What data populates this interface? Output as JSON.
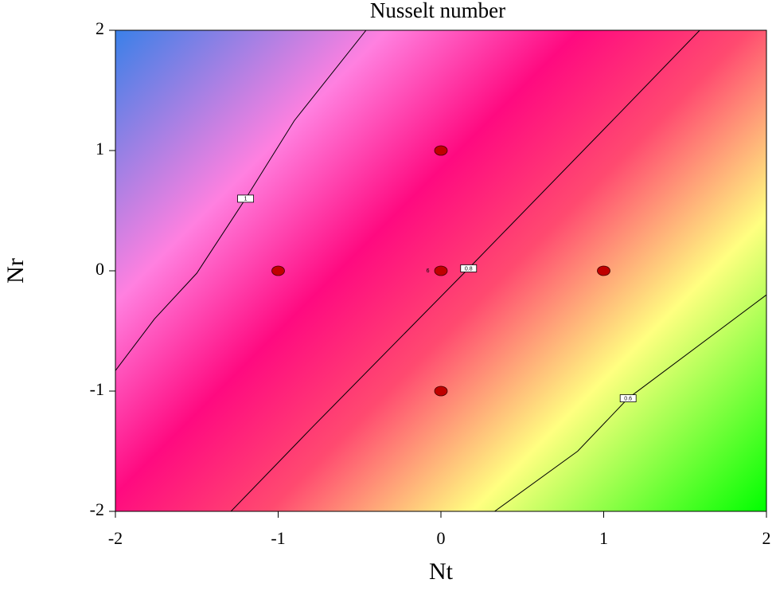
{
  "chart_data": {
    "type": "contour",
    "title": "Nusselt number",
    "xlabel": "Nt",
    "ylabel": "Nr",
    "xlim": [
      -2,
      2
    ],
    "ylim": [
      -2,
      2
    ],
    "xticks": [
      -2,
      -1,
      0,
      1,
      2
    ],
    "yticks": [
      -2,
      -1,
      0,
      1,
      2
    ],
    "contours": [
      {
        "level": 1,
        "points": [
          [
            -2,
            -0.83
          ],
          [
            -1.76,
            -0.4
          ],
          [
            -1.5,
            -0.02
          ],
          [
            -1.2,
            0.6
          ],
          [
            -0.9,
            1.25
          ],
          [
            -0.46,
            2
          ]
        ]
      },
      {
        "level": 0.8,
        "points": [
          [
            -1.29,
            -2
          ],
          [
            -0.79,
            -1.3
          ],
          [
            0.17,
            0.02
          ],
          [
            1.09,
            1.3
          ],
          [
            1.59,
            2
          ]
        ]
      },
      {
        "level": 0.6,
        "points": [
          [
            0.33,
            -2
          ],
          [
            0.84,
            -1.5
          ],
          [
            1.15,
            -1.06
          ],
          [
            2,
            -0.2
          ]
        ]
      }
    ],
    "design_points": {
      "color": "#c00000",
      "x": [
        0,
        -1,
        0,
        1,
        0
      ],
      "y": [
        1,
        0,
        0,
        0,
        -1
      ]
    },
    "annotations": [
      {
        "text": "6",
        "x": -0.08,
        "y": 0
      }
    ]
  }
}
